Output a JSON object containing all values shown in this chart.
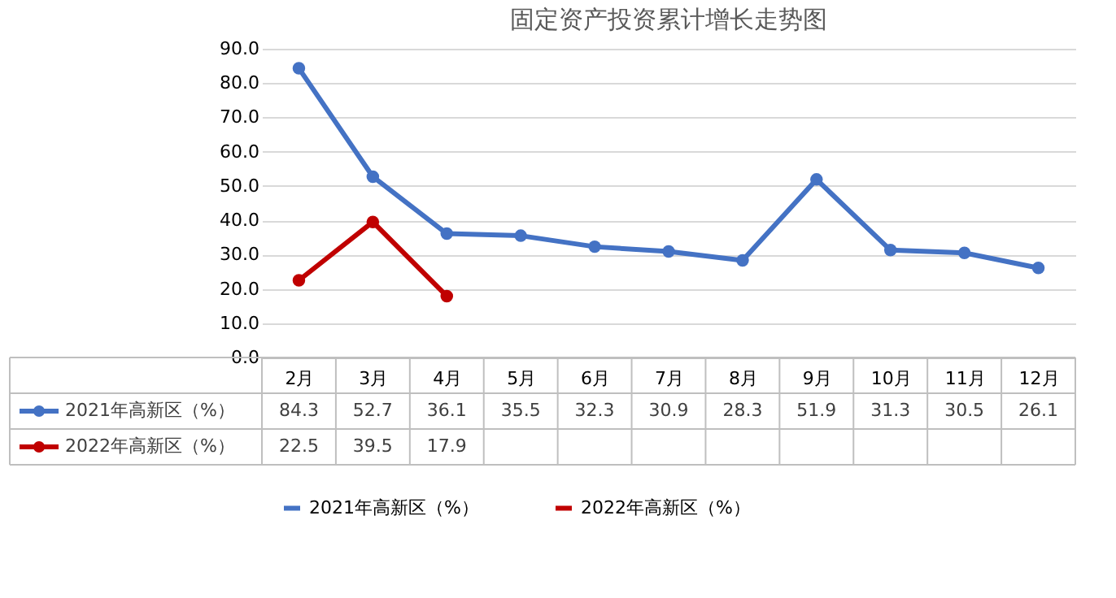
{
  "chart_data": {
    "type": "line",
    "title": "固定资产投资累计增长走势图",
    "categories": [
      "2月",
      "3月",
      "4月",
      "5月",
      "6月",
      "7月",
      "8月",
      "9月",
      "10月",
      "11月",
      "12月"
    ],
    "series": [
      {
        "name": "2021年高新区（%）",
        "color": "#4472c4",
        "values": [
          84.3,
          52.7,
          36.1,
          35.5,
          32.3,
          30.9,
          28.3,
          51.9,
          31.3,
          30.5,
          26.1
        ]
      },
      {
        "name": "2022年高新区（%）",
        "color": "#c00000",
        "values": [
          22.5,
          39.5,
          17.9,
          null,
          null,
          null,
          null,
          null,
          null,
          null,
          null
        ]
      }
    ],
    "ylim": [
      0,
      90
    ],
    "yticks": [
      {
        "value": 0,
        "label": "0.0"
      },
      {
        "value": 10,
        "label": "10.0"
      },
      {
        "value": 20,
        "label": "20.0"
      },
      {
        "value": 30,
        "label": "30.0"
      },
      {
        "value": 40,
        "label": "40.0"
      },
      {
        "value": 50,
        "label": "50.0"
      },
      {
        "value": 60,
        "label": "60.0"
      },
      {
        "value": 70,
        "label": "70.0"
      },
      {
        "value": 80,
        "label": "80.0"
      },
      {
        "value": 90,
        "label": "90.0"
      }
    ],
    "grid": "y",
    "legend": "bottom",
    "marker": "circle",
    "line_style": "solid",
    "data_labels": true
  }
}
